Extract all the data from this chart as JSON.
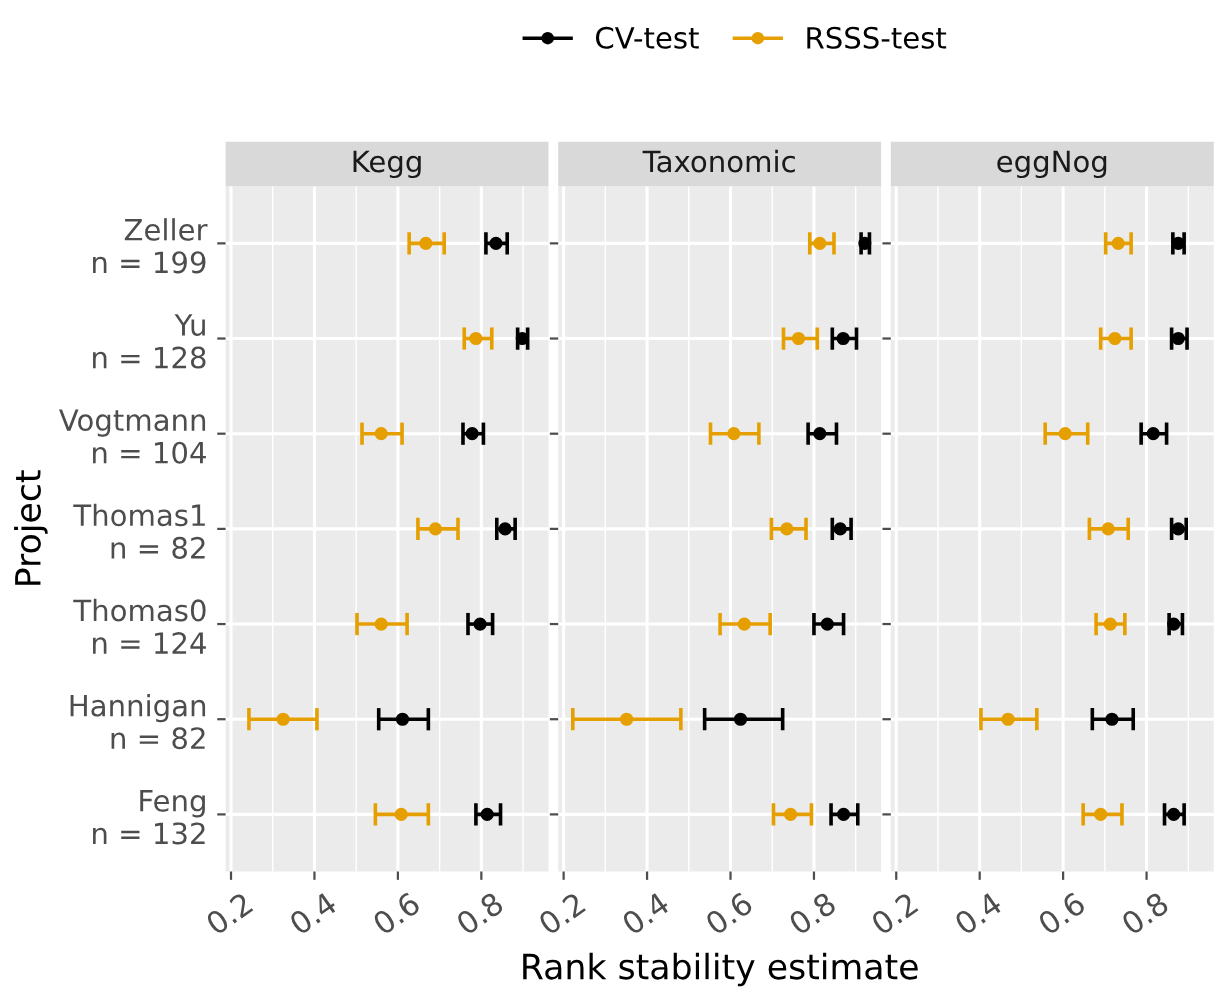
{
  "chart_data": [
    {
      "type": "scatter",
      "orientation": "horizontal",
      "title": "Kegg",
      "ylabel": "Project",
      "categories": [
        "Zeller\nn = 199",
        "Yu\nn = 128",
        "Vogtmann\nn = 104",
        "Thomas1\nn = 82",
        "Thomas0\nn = 124",
        "Hannigan\nn = 82",
        "Feng\nn = 132"
      ],
      "series": [
        {
          "name": "CV-test",
          "color": "#000000",
          "values": [
            0.835,
            0.898,
            0.778,
            0.857,
            0.797,
            0.611,
            0.814
          ],
          "errors": [
            [
              0.811,
              0.862
            ],
            [
              0.887,
              0.911
            ],
            [
              0.756,
              0.805
            ],
            [
              0.837,
              0.881
            ],
            [
              0.768,
              0.827
            ],
            [
              0.554,
              0.673
            ],
            [
              0.787,
              0.846
            ]
          ]
        },
        {
          "name": "RSSS-test",
          "color": "#e69f00",
          "values": [
            0.667,
            0.787,
            0.56,
            0.69,
            0.56,
            0.325,
            0.608
          ],
          "errors": [
            [
              0.627,
              0.711
            ],
            [
              0.759,
              0.825
            ],
            [
              0.514,
              0.61
            ],
            [
              0.648,
              0.744
            ],
            [
              0.502,
              0.622
            ],
            [
              0.243,
              0.406
            ],
            [
              0.546,
              0.673
            ]
          ]
        }
      ],
      "xlim": [
        0.187,
        0.961
      ],
      "xticks": [
        0.2,
        0.4,
        0.6,
        0.8
      ],
      "grid": true,
      "marker": "circle",
      "legend": "top"
    },
    {
      "type": "scatter",
      "orientation": "horizontal",
      "title": "Taxonomic",
      "xlabel": "Rank stability estimate",
      "categories": [
        null,
        null,
        null,
        null,
        null,
        null,
        null
      ],
      "series": [
        {
          "color": "#000000",
          "values": [
            0.922,
            0.87,
            0.814,
            0.863,
            0.832,
            0.624,
            0.871
          ],
          "errors": [
            [
              0.913,
              0.933
            ],
            [
              0.844,
              0.902
            ],
            [
              0.786,
              0.854
            ],
            [
              0.844,
              0.889
            ],
            [
              0.8,
              0.871
            ],
            [
              0.538,
              0.725
            ],
            [
              0.841,
              0.905
            ]
          ]
        },
        {
          "color": "#e69f00",
          "values": [
            0.814,
            0.763,
            0.608,
            0.735,
            0.633,
            0.351,
            0.744
          ],
          "errors": [
            [
              0.79,
              0.848
            ],
            [
              0.727,
              0.808
            ],
            [
              0.552,
              0.668
            ],
            [
              0.698,
              0.781
            ],
            [
              0.575,
              0.695
            ],
            [
              0.222,
              0.481
            ],
            [
              0.703,
              0.794
            ]
          ]
        }
      ],
      "xlim": [
        0.187,
        0.961
      ],
      "xticks": [
        0.2,
        0.4,
        0.6,
        0.8
      ],
      "grid": true,
      "marker": "circle",
      "tick_labels": "x"
    },
    {
      "type": "scatter",
      "orientation": "horizontal",
      "title": "eggNog",
      "categories": [
        null,
        null,
        null,
        null,
        null,
        null,
        null
      ],
      "series": [
        {
          "color": "#000000",
          "values": [
            0.876,
            0.876,
            0.816,
            0.876,
            0.865,
            0.717,
            0.865
          ],
          "errors": [
            [
              0.863,
              0.89
            ],
            [
              0.86,
              0.897
            ],
            [
              0.787,
              0.848
            ],
            [
              0.86,
              0.895
            ],
            [
              0.854,
              0.886
            ],
            [
              0.67,
              0.768
            ],
            [
              0.843,
              0.89
            ]
          ]
        },
        {
          "color": "#e69f00",
          "values": [
            0.732,
            0.724,
            0.605,
            0.708,
            0.713,
            0.468,
            0.69
          ],
          "errors": [
            [
              0.702,
              0.763
            ],
            [
              0.69,
              0.763
            ],
            [
              0.557,
              0.659
            ],
            [
              0.663,
              0.756
            ],
            [
              0.679,
              0.748
            ],
            [
              0.403,
              0.537
            ],
            [
              0.648,
              0.741
            ]
          ]
        }
      ],
      "xlim": [
        0.187,
        0.961
      ],
      "xticks": [
        0.2,
        0.4,
        0.6,
        0.8
      ],
      "grid": true,
      "marker": "circle",
      "tick_labels": "x"
    }
  ]
}
